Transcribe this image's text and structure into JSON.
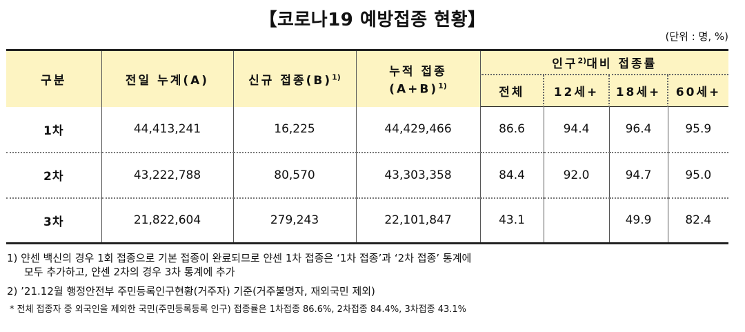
{
  "title": "【코로나19 예방접종 현황】",
  "unit": "(단위 : 명, %)",
  "headers": {
    "category": "구분",
    "prev_total": "전일 누계(A)",
    "new": "신규 접종(B)",
    "new_sup": "1)",
    "cumulative_line1": "누적 접종",
    "cumulative_line2": "(A+B)",
    "cumulative_sup": "1)",
    "rate_group_pre": "인구",
    "rate_group_sup": "2)",
    "rate_group_post": "대비 접종률",
    "rate_all": "전체",
    "rate_12": "12세+",
    "rate_18": "18세+",
    "rate_60": "60세+"
  },
  "rows": [
    {
      "label": "1차",
      "prev_total": "44,413,241",
      "new": "16,225",
      "cumulative": "44,429,466",
      "rate_all": "86.6",
      "rate_12": "94.4",
      "rate_18": "96.4",
      "rate_60": "95.9"
    },
    {
      "label": "2차",
      "prev_total": "43,222,788",
      "new": "80,570",
      "cumulative": "43,303,358",
      "rate_all": "84.4",
      "rate_12": "92.0",
      "rate_18": "94.7",
      "rate_60": "95.0"
    },
    {
      "label": "3차",
      "prev_total": "21,822,604",
      "new": "279,243",
      "cumulative": "22,101,847",
      "rate_all": "43.1",
      "rate_12": "",
      "rate_18": "49.9",
      "rate_60": "82.4"
    }
  ],
  "notes": {
    "note1_line1": "1) 얀센 백신의 경우 1회 접종으로 기본 접종이 완료되므로 얀센 1차 접종은 ‘1차 접종’과 ‘2차 접종’ 통계에",
    "note1_line2": "모두 추가하고, 얀센 2차의 경우 3차 통계에 추가",
    "note2": "2) ’21.12월 행정안전부 주민등록인구현황(거주자) 기준(거주불명자, 재외국민 제외)",
    "note3": "* 전체 접종자 중 외국인을 제외한 국민(주민등록등록 인구) 접종률은 1차접종 86.6%, 2차접종 84.4%, 3차접종 43.1%"
  }
}
